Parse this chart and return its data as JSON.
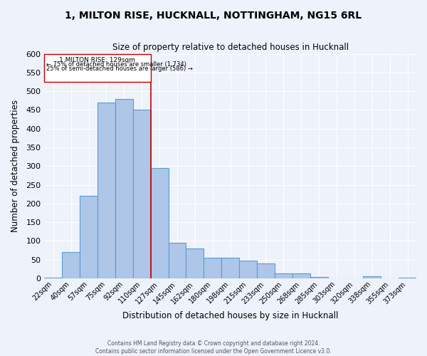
{
  "title1": "1, MILTON RISE, HUCKNALL, NOTTINGHAM, NG15 6RL",
  "title2": "Size of property relative to detached houses in Hucknall",
  "xlabel": "Distribution of detached houses by size in Hucknall",
  "ylabel": "Number of detached properties",
  "categories": [
    "22sqm",
    "40sqm",
    "57sqm",
    "75sqm",
    "92sqm",
    "110sqm",
    "127sqm",
    "145sqm",
    "162sqm",
    "180sqm",
    "198sqm",
    "215sqm",
    "233sqm",
    "250sqm",
    "268sqm",
    "285sqm",
    "303sqm",
    "320sqm",
    "338sqm",
    "355sqm",
    "373sqm"
  ],
  "values": [
    2,
    70,
    220,
    470,
    480,
    450,
    295,
    95,
    80,
    55,
    55,
    47,
    40,
    13,
    13,
    4,
    0,
    0,
    5,
    0,
    2
  ],
  "bar_color": "#aec6e8",
  "bar_edge_color": "#5b9bd5",
  "marker_label": "1 MILTON RISE: 129sqm",
  "annotation_line1": "← 75% of detached houses are smaller (1,734)",
  "annotation_line2": "25% of semi-detached houses are larger (586) →",
  "vline_color": "#c00000",
  "background_color": "#eef2fa",
  "grid_color": "#ffffff",
  "footnote1": "Contains HM Land Registry data © Crown copyright and database right 2024.",
  "footnote2": "Contains public sector information licensed under the Open Government Licence v3.0.",
  "ylim": [
    0,
    600
  ],
  "yticks": [
    0,
    50,
    100,
    150,
    200,
    250,
    300,
    350,
    400,
    450,
    500,
    550,
    600
  ],
  "vline_index": 6.5
}
